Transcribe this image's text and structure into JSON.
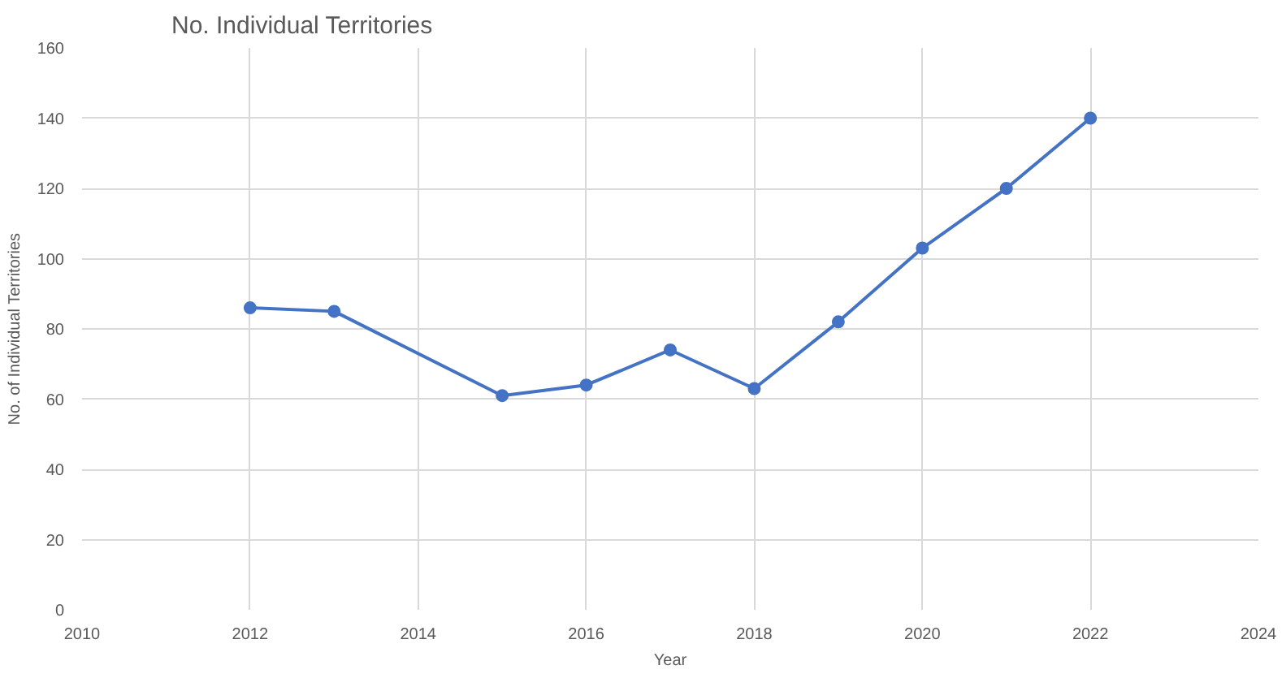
{
  "chart_data": {
    "type": "line",
    "title": "No. Individual Territories",
    "xlabel": "Year",
    "ylabel": "No. of Individual Territories",
    "x": [
      2012,
      2013,
      2015,
      2016,
      2017,
      2018,
      2019,
      2020,
      2021,
      2022
    ],
    "series": [
      {
        "color": "#4472c4",
        "values": [
          86,
          85,
          61,
          64,
          74,
          63,
          82,
          103,
          120,
          140
        ]
      }
    ],
    "xlim": [
      2010,
      2024
    ],
    "xticks": [
      2010,
      2012,
      2014,
      2016,
      2018,
      2020,
      2022,
      2024
    ],
    "ylim": [
      0,
      160
    ],
    "yticks": [
      0,
      20,
      40,
      60,
      80,
      100,
      120,
      140,
      160
    ],
    "grid": true,
    "marker": "circle",
    "line_style": "solid"
  }
}
